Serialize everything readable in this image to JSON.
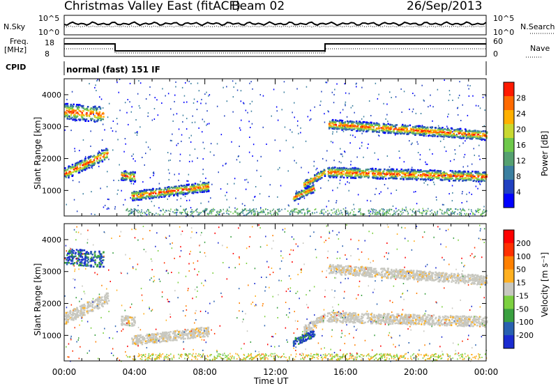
{
  "header": {
    "title": "Christmas Valley East (fitACF)",
    "beam": "Beam 02",
    "date": "26/Sep/2013",
    "mode": "normal (fast) 151 IF"
  },
  "strip_labels": {
    "nsky": "N.Sky",
    "nsearch": "N.Search",
    "freq_line1": "Freq.",
    "freq_line2": "[MHz]",
    "nave": "Nave",
    "cpid": "CPID",
    "nsky_ticks": [
      "10^5",
      "10^0"
    ],
    "freq_ticks": [
      "18",
      "8"
    ],
    "nave_ticks": [
      "60",
      "0"
    ],
    "nsearch_ticks": [
      "10^5",
      "10^0"
    ]
  },
  "chart_data": [
    {
      "type": "heatmap",
      "name": "power",
      "ylabel": "Slant Range [km]",
      "xlabel": "",
      "x_ticks": [
        "00:00",
        "04:00",
        "08:00",
        "12:00",
        "16:00",
        "20:00",
        "00:00"
      ],
      "y_ticks": [
        "1000",
        "2000",
        "3000",
        "4000"
      ],
      "ylim": [
        200,
        4500
      ],
      "xlim_hours": [
        0,
        24
      ],
      "colorbar": {
        "label": "Power [dB]",
        "ticks": [
          "4",
          "8",
          "12",
          "16",
          "20",
          "24",
          "28"
        ],
        "colors": [
          "#0000ff",
          "#2040c0",
          "#3b7fa0",
          "#55a070",
          "#6ec84a",
          "#c8d830",
          "#ffb000",
          "#ff6a00",
          "#ff1a00"
        ]
      }
    },
    {
      "type": "heatmap",
      "name": "velocity",
      "ylabel": "Slant Range [km]",
      "xlabel": "Time UT",
      "x_ticks": [
        "00:00",
        "04:00",
        "08:00",
        "12:00",
        "16:00",
        "20:00",
        "00:00"
      ],
      "y_ticks": [
        "1000",
        "2000",
        "3000",
        "4000"
      ],
      "ylim": [
        200,
        4500
      ],
      "xlim_hours": [
        0,
        24
      ],
      "colorbar": {
        "label": "Velocity [m s⁻¹]",
        "ticks": [
          "200",
          "100",
          "50",
          "15",
          "-15",
          "-50",
          "-100",
          "-200"
        ],
        "colors": [
          "#1a2bd0",
          "#2860b0",
          "#3aa040",
          "#7cd040",
          "#c8c8c0",
          "#ffb020",
          "#ff8000",
          "#ff3000",
          "#ff0000"
        ]
      }
    }
  ]
}
